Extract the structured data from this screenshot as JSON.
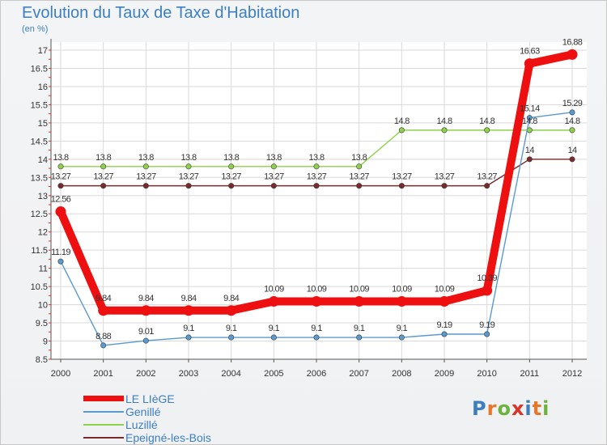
{
  "header": {
    "title": "Evolution du Taux de Taxe d'Habitation",
    "subtitle": "(en %)"
  },
  "logo": {
    "text": "Proxiti",
    "letters": [
      "P",
      "r",
      "o",
      "x",
      "i",
      "t",
      "i"
    ],
    "colors": [
      "#3b7ec2",
      "#e8772a",
      "#6cb33e",
      "#d8342a",
      "#3b7ec2",
      "#e8772a",
      "#6cb33e"
    ]
  },
  "chart_data": {
    "type": "line",
    "title": "Evolution du Taux de Taxe d'Habitation",
    "subtitle": "(en %)",
    "xlabel": "",
    "ylabel": "",
    "categories": [
      "2000",
      "2001",
      "2002",
      "2003",
      "2004",
      "2005",
      "2006",
      "2007",
      "2008",
      "2009",
      "2010",
      "2011",
      "2012"
    ],
    "ylim": [
      8.5,
      17
    ],
    "yticks": [
      "8.5",
      "9",
      "9.5",
      "10",
      "10.5",
      "11",
      "11.5",
      "12",
      "12.5",
      "13",
      "13.5",
      "14",
      "14.5",
      "15",
      "15.5",
      "16",
      "16.5",
      "17"
    ],
    "grid": true,
    "legend_position": "bottom-left",
    "series": [
      {
        "name": "LE LIèGE",
        "color": "#ee1010",
        "values": [
          12.56,
          9.84,
          9.84,
          9.84,
          9.84,
          10.09,
          10.09,
          10.09,
          10.09,
          10.09,
          10.39,
          16.63,
          16.88
        ],
        "labels": [
          "12.56",
          "9.84",
          "9.84",
          "9.84",
          "9.84",
          "10.09",
          "10.09",
          "10.09",
          "10.09",
          "10.09",
          "10.39",
          "16.63",
          "16.88"
        ]
      },
      {
        "name": "Genillé",
        "color": "#5a9ad0",
        "values": [
          11.19,
          8.88,
          9.01,
          9.1,
          9.1,
          9.1,
          9.1,
          9.1,
          9.1,
          9.19,
          9.19,
          15.14,
          15.29
        ],
        "labels": [
          "11.19",
          "8.88",
          "9.01",
          "9.1",
          "9.1",
          "9.1",
          "9.1",
          "9.1",
          "9.1",
          "9.19",
          "9.19",
          "15.14",
          "15.29"
        ]
      },
      {
        "name": "Luzillé",
        "color": "#8ed24a",
        "values": [
          13.8,
          13.8,
          13.8,
          13.8,
          13.8,
          13.8,
          13.8,
          13.8,
          14.8,
          14.8,
          14.8,
          14.8,
          14.8
        ],
        "labels": [
          "13.8",
          "13.8",
          "13.8",
          "13.8",
          "13.8",
          "13.8",
          "13.8",
          "13.8",
          "14.8",
          "14.8",
          "14.8",
          "14.8",
          "14.8"
        ]
      },
      {
        "name": "Epeigné-les-Bois",
        "color": "#7a2a2a",
        "values": [
          13.27,
          13.27,
          13.27,
          13.27,
          13.27,
          13.27,
          13.27,
          13.27,
          13.27,
          13.27,
          13.27,
          14,
          14
        ],
        "labels": [
          "13.27",
          "13.27",
          "13.27",
          "13.27",
          "13.27",
          "13.27",
          "13.27",
          "13.27",
          "13.27",
          "13.27",
          "13.27",
          "14",
          "14"
        ]
      }
    ]
  }
}
